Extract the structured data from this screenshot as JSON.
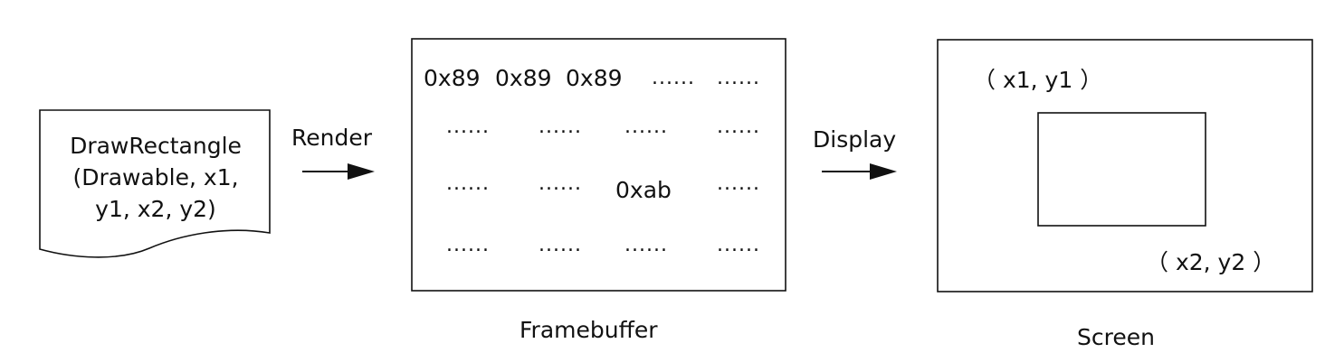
{
  "command": {
    "lines": [
      "DrawRectangle",
      "(Drawable, x1,",
      "y1, x2, y2)"
    ]
  },
  "arrows": {
    "render_label": "Render",
    "display_label": "Display"
  },
  "framebuffer": {
    "caption": "Framebuffer",
    "rows": [
      [
        "0x89",
        "0x89",
        "0x89",
        "......",
        "......"
      ],
      [
        "......",
        "......",
        "......",
        "......"
      ],
      [
        "......",
        "......",
        "0xab",
        "......"
      ],
      [
        "......",
        "......",
        "......",
        "......"
      ]
    ]
  },
  "screen": {
    "caption": "Screen",
    "top_left_label": "（ x1, y1 ）",
    "bottom_right_label": "（ x2, y2 ）"
  },
  "colors": {
    "ink": "#111111",
    "background": "#ffffff"
  }
}
